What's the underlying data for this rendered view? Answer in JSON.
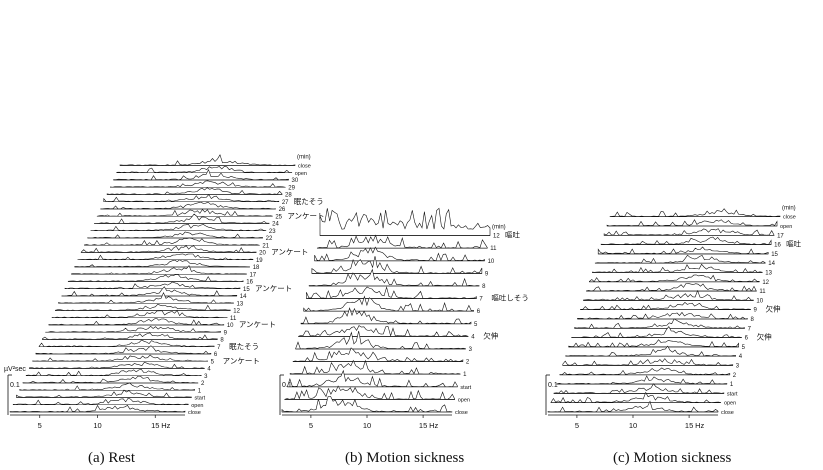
{
  "panels": [
    {
      "id": "a",
      "caption": "(a)   Rest",
      "chart_data": {
        "type": "area",
        "description": "waterfall spectra",
        "x_ticks": [
          "5",
          "10",
          "15"
        ],
        "x_unit": "Hz",
        "y_unit_html": "µV²sec",
        "y_scale": "0.1",
        "time_unit": "(min)",
        "labels_bottom": [
          "close",
          "open",
          "start"
        ],
        "labels_top": [
          "open",
          "close"
        ],
        "minute_labels": [
          "1",
          "2",
          "3",
          "4",
          "5",
          "6",
          "7",
          "8",
          "9",
          "10",
          "11",
          "12",
          "13",
          "14",
          "15",
          "16",
          "17",
          "18",
          "19",
          "20",
          "21",
          "22",
          "23",
          "24",
          "25",
          "26",
          "27",
          "28",
          "29",
          "30"
        ],
        "annotations": [
          {
            "minute": 5,
            "text": "アンケート"
          },
          {
            "minute": 7,
            "text": "眠たそう"
          },
          {
            "minute": 10,
            "text": "アンケート"
          },
          {
            "minute": 15,
            "text": "アンケート"
          },
          {
            "minute": 20,
            "text": "アンケート"
          },
          {
            "minute": 25,
            "text": "アンケート"
          },
          {
            "minute": 27,
            "text": "眠たそう"
          }
        ]
      }
    },
    {
      "id": "b",
      "caption": "(b)   Motion sickness",
      "chart_data": {
        "type": "area",
        "x_ticks": [
          "5",
          "10",
          "15"
        ],
        "x_unit": "Hz",
        "y_scale": "0.1",
        "time_unit": "(min)",
        "labels_bottom": [
          "close",
          "open",
          "start"
        ],
        "minute_labels": [
          "1",
          "2",
          "3",
          "4",
          "5",
          "6",
          "7",
          "8",
          "9",
          "10",
          "11",
          "12"
        ],
        "annotations": [
          {
            "minute": 4,
            "text": "欠伸"
          },
          {
            "minute": 7,
            "text": "嘔吐しそう"
          },
          {
            "minute": 12,
            "text": "嘔吐"
          }
        ]
      }
    },
    {
      "id": "c",
      "caption": "(c)   Motion sickness",
      "chart_data": {
        "type": "area",
        "x_ticks": [
          "5",
          "10",
          "15"
        ],
        "x_unit": "Hz",
        "y_scale": "0.1",
        "time_unit": "(min)",
        "labels_bottom": [
          "close",
          "open",
          "start"
        ],
        "labels_top": [
          "open",
          "close"
        ],
        "minute_labels": [
          "1",
          "2",
          "3",
          "4",
          "5",
          "6",
          "7",
          "8",
          "9",
          "10",
          "11",
          "12",
          "13",
          "14",
          "15",
          "16",
          "17"
        ],
        "annotations": [
          {
            "minute": 6,
            "text": "欠伸"
          },
          {
            "minute": 9,
            "text": "欠伸"
          },
          {
            "minute": 16,
            "text": "嘔吐"
          }
        ]
      }
    }
  ],
  "colors": {
    "ink": "#111111"
  }
}
